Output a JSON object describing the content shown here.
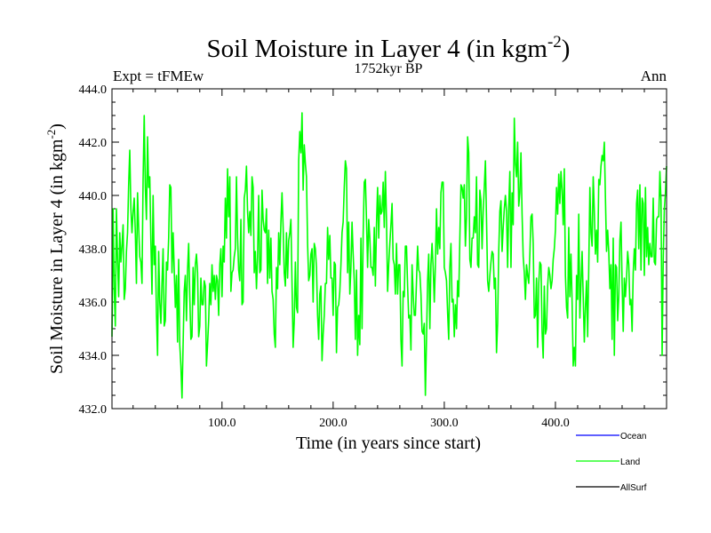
{
  "chart_data": {
    "type": "line",
    "title": "Soil Moisture in Layer 4 (in kgm",
    "title_sup": "-2",
    "title_close": ")",
    "subtitle": "1752kyr BP",
    "left_label": "Expt = tFMEw",
    "right_label": "Ann",
    "xlabel": "Time (in years since start)",
    "ylabel": "Soil Moisture in Layer 4 (in kgm",
    "ylabel_sup": "-2",
    "ylabel_close": ")",
    "xlim": [
      1,
      500
    ],
    "ylim": [
      432,
      444
    ],
    "x_ticks": [
      100,
      200,
      300,
      400
    ],
    "x_tick_labels": [
      "100.0",
      "200.0",
      "300.0",
      "400.0"
    ],
    "y_ticks": [
      432,
      434,
      436,
      438,
      440,
      442,
      444
    ],
    "y_tick_labels": [
      "432.0",
      "434.0",
      "436.0",
      "438.0",
      "440.0",
      "442.0",
      "444.0"
    ],
    "legend": [
      {
        "name": "Ocean",
        "color": "#0000ff"
      },
      {
        "name": "Land",
        "color": "#00ff00"
      },
      {
        "name": "AllSurf",
        "color": "#000000"
      }
    ],
    "series": [
      {
        "name": "Land",
        "color": "#00ff00",
        "x_start": 1,
        "x_step": 1,
        "values": [
          434.7,
          439.5,
          436.5,
          435.1,
          439.5,
          437.6,
          436.2,
          438.6,
          437.5,
          438.1,
          438.9,
          436.1,
          436.5,
          437.9,
          438.6,
          440.4,
          441.7,
          439.5,
          438.6,
          439.4,
          439.9,
          438.6,
          436.7,
          440.1,
          438.8,
          437.7,
          437.5,
          436.7,
          440.6,
          443.0,
          440.3,
          439.1,
          442.2,
          440.3,
          440.7,
          438.3,
          436.3,
          440.0,
          437.4,
          438.1,
          435.6,
          434.0,
          437.9,
          436.0,
          435.2,
          436.7,
          438.0,
          435.1,
          435.3,
          437.5,
          437.2,
          438.4,
          440.4,
          440.3,
          437.1,
          438.6,
          437.2,
          435.8,
          437.0,
          434.5,
          437.6,
          434.4,
          433.6,
          432.4,
          434.4,
          436.4,
          437.0,
          435.3,
          437.2,
          438.2,
          436.2,
          434.6,
          434.7,
          437.3,
          435.9,
          437.4,
          437.8,
          437.1,
          434.7,
          435.1,
          436.9,
          435.9,
          435.9,
          436.8,
          436.6,
          433.6,
          434.4,
          435.3,
          436.7,
          435.9,
          437.4,
          436.4,
          437.0,
          436.1,
          437.0,
          436.8,
          435.5,
          437.4,
          438.0,
          436.2,
          438.1,
          437.5,
          439.9,
          438.4,
          441.0,
          439.2,
          440.7,
          436.4,
          437.1,
          437.2,
          437.7,
          438.0,
          440.7,
          438.4,
          437.2,
          436.8,
          439.1,
          435.9,
          436.0,
          439.9,
          440.2,
          441.1,
          439.4,
          438.6,
          439.4,
          438.5,
          440.7,
          440.3,
          437.1,
          437.9,
          436.5,
          437.7,
          440.0,
          437.1,
          437.2,
          440.2,
          439.1,
          438.7,
          438.6,
          439.5,
          436.7,
          438.7,
          436.9,
          438.4,
          436.4,
          436.1,
          434.8,
          434.3,
          437.3,
          436.5,
          438.6,
          437.4,
          439.0,
          440.1,
          438.8,
          437.1,
          436.6,
          438.6,
          436.9,
          438.3,
          438.6,
          439.1,
          436.7,
          434.3,
          435.3,
          437.5,
          435.8,
          435.6,
          441.3,
          442.4,
          441.6,
          443.1,
          440.2,
          441.9,
          441.2,
          440.7,
          438.2,
          436.8,
          437.0,
          437.8,
          438.0,
          436.0,
          438.2,
          438.0,
          437.3,
          435.5,
          434.6,
          436.3,
          436.6,
          433.8,
          434.8,
          435.5,
          436.7,
          436.7,
          438.8,
          437.6,
          438.5,
          436.9,
          436.9,
          435.5,
          437.5,
          437.4,
          434.1,
          435.8,
          435.9,
          436.4,
          437.4,
          438.6,
          439.0,
          440.3,
          441.3,
          441.0,
          437.1,
          439.0,
          436.3,
          437.3,
          439.0,
          437.8,
          436.8,
          434.6,
          437.2,
          434.0,
          435.5,
          434.4,
          438.4,
          435.0,
          438.5,
          440.5,
          440.6,
          439.1,
          437.3,
          439.1,
          438.4,
          437.3,
          437.3,
          437.0,
          438.8,
          436.6,
          438.9,
          440.3,
          438.4,
          440.0,
          439.3,
          439.4,
          440.5,
          438.8,
          440.9,
          439.1,
          436.4,
          437.4,
          438.2,
          438.9,
          439.7,
          437.6,
          437.4,
          436.3,
          438.2,
          436.3,
          437.4,
          437.4,
          434.6,
          433.6,
          436.4,
          436.2,
          438.1,
          438.1,
          436.6,
          435.4,
          435.5,
          434.2,
          437.4,
          436.3,
          435.5,
          435.5,
          436.8,
          438.1,
          437.2,
          437.1,
          436.3,
          434.9,
          434.8,
          435.2,
          432.5,
          434.6,
          436.8,
          437.8,
          435.0,
          437.4,
          438.2,
          437.3,
          436.0,
          437.4,
          439.5,
          437.8,
          438.8,
          438.0,
          440.1,
          440.5,
          440.5,
          437.3,
          437.1,
          436.8,
          435.6,
          434.6,
          437.3,
          438.2,
          436.0,
          436.1,
          434.7,
          435.9,
          435.0,
          436.8,
          436.2,
          438.4,
          440.4,
          440.3,
          439.9,
          440.4,
          438.1,
          439.2,
          442.2,
          441.6,
          437.6,
          437.3,
          438.4,
          438.4,
          439.2,
          438.6,
          440.7,
          437.4,
          437.3,
          440.2,
          439.8,
          438.0,
          439.4,
          440.3,
          441.3,
          439.1,
          436.8,
          436.4,
          437.0,
          437.5,
          437.9,
          437.8,
          436.5,
          436.9,
          434.1,
          435.2,
          437.9,
          439.4,
          439.8,
          437.9,
          438.8,
          439.5,
          440.0,
          439.4,
          437.3,
          439.6,
          440.9,
          437.3,
          440.1,
          438.9,
          442.9,
          441.2,
          440.7,
          442.0,
          439.6,
          440.1,
          441.6,
          439.3,
          437.7,
          437.1,
          436.1,
          437.4,
          437.0,
          436.7,
          437.8,
          439.2,
          439.3,
          438.2,
          435.4,
          435.5,
          436.9,
          434.3,
          436.7,
          437.5,
          437.4,
          434.9,
          433.9,
          436.6,
          434.8,
          435.0,
          436.6,
          437.3,
          437.0,
          436.5,
          436.8,
          437.6,
          438.0,
          438.7,
          440.3,
          439.3,
          440.8,
          439.7,
          440.9,
          440.2,
          438.9,
          441.0,
          437.0,
          435.8,
          435.4,
          438.8,
          436.2,
          437.8,
          436.0,
          433.6,
          434.3,
          433.6,
          437.0,
          436.1,
          439.3,
          435.4,
          436.7,
          437.9,
          436.2,
          434.5,
          435.8,
          436.8,
          434.7,
          437.3,
          440.3,
          438.6,
          438.1,
          440.7,
          439.4,
          437.8,
          438.7,
          437.5,
          440.6,
          440.4,
          441.1,
          441.5,
          441.3,
          442.0,
          439.9,
          437.9,
          438.7,
          437.9,
          436.5,
          437.4,
          434.6,
          438.4,
          434.0,
          437.4,
          437.3,
          435.3,
          436.2,
          438.3,
          439.0,
          436.7,
          434.9,
          436.9,
          436.2,
          436.9,
          437.9,
          437.4,
          435.9,
          436.1,
          434.9,
          437.1,
          438.0,
          437.2,
          439.7,
          440.2,
          438.0,
          440.4,
          437.2,
          439.9,
          439.7,
          437.0,
          440.3,
          437.7,
          438.8,
          437.4,
          438.2,
          437.7,
          437.7,
          439.9,
          437.5,
          437.4,
          439.1,
          439.2,
          439.2,
          440.9,
          439.8,
          434.0,
          437.6,
          439.5,
          440.1,
          441.1
        ]
      }
    ]
  }
}
